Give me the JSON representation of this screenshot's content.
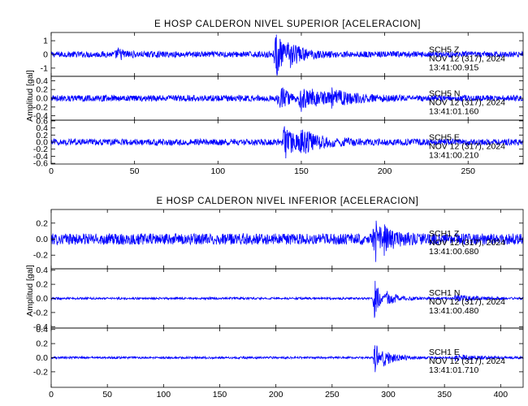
{
  "colors": {
    "trace": "#0000ff",
    "axis": "#000000",
    "background": "#ffffff"
  },
  "chart_data": [
    {
      "type": "line",
      "title": "E HOSP CALDERON NIVEL SUPERIOR [ACELERACION]",
      "ylabel": "Amplitud [gal]",
      "xlim": [
        0,
        283
      ],
      "x_ticks": [
        "0",
        "50",
        "100",
        "150",
        "200",
        "250"
      ],
      "x_tick_values": [
        0,
        50,
        100,
        150,
        200,
        250
      ],
      "grid": false,
      "panels": [
        {
          "name": "SCH5 Z",
          "info": [
            "SCH5 Z",
            "NOV 12 (317), 2024",
            "13:41:00.915"
          ],
          "ylim": [
            -1.6,
            1.6
          ],
          "y_ticks": [
            "1",
            "0",
            "-1"
          ],
          "y_tick_values": [
            1,
            0,
            -1
          ],
          "noise": 0.22,
          "events": [
            {
              "t": 40,
              "amp": 0.35,
              "width": 4
            },
            {
              "t": 135,
              "amp": 1.5,
              "width": 5
            },
            {
              "t": 143,
              "amp": 0.6,
              "width": 8
            }
          ]
        },
        {
          "name": "SCH5 N",
          "info": [
            "SCH5 N",
            "NOV 12 (317), 2024",
            "13:41:01.160"
          ],
          "ylim": [
            -0.5,
            0.5
          ],
          "y_ticks": [
            "0.4",
            "0.2",
            "0.0",
            "-0.2",
            "-0.4"
          ],
          "y_tick_values": [
            0.4,
            0.2,
            0.0,
            -0.2,
            -0.4
          ],
          "noise": 0.07,
          "events": [
            {
              "t": 137,
              "amp": 0.32,
              "width": 4
            },
            {
              "t": 150,
              "amp": 0.25,
              "width": 14
            },
            {
              "t": 168,
              "amp": 0.12,
              "width": 10
            }
          ]
        },
        {
          "name": "SCH5 E",
          "info": [
            "SCH5 E",
            "NOV 12 (317), 2024",
            "13:41:00.210"
          ],
          "ylim": [
            -0.62,
            0.62
          ],
          "y_ticks": [
            "0.6",
            "0.4",
            "0.2",
            "0.0",
            "-0.2",
            "-0.4",
            "-0.6"
          ],
          "y_tick_values": [
            0.6,
            0.4,
            0.2,
            0.0,
            -0.2,
            -0.4,
            -0.6
          ],
          "noise": 0.09,
          "events": [
            {
              "t": 140,
              "amp": 0.42,
              "width": 6
            },
            {
              "t": 150,
              "amp": 0.28,
              "width": 12
            }
          ]
        }
      ]
    },
    {
      "type": "line",
      "title": "E HOSP CALDERON NIVEL INFERIOR [ACELERACION]",
      "ylabel": "Amplitud [gal]",
      "xlim": [
        0,
        420
      ],
      "x_ticks": [
        "0",
        "50",
        "100",
        "150",
        "200",
        "250",
        "300",
        "350",
        "400"
      ],
      "x_tick_values": [
        0,
        50,
        100,
        150,
        200,
        250,
        300,
        350,
        400
      ],
      "grid": false,
      "panels": [
        {
          "name": "SCH1 Z",
          "info": [
            "SCH1 Z",
            "NOV 12 (317), 2024",
            "13:41:00.680"
          ],
          "ylim": [
            -0.37,
            0.37
          ],
          "y_ticks": [
            "0.2",
            "0.0",
            "-0.2"
          ],
          "y_tick_values": [
            0.2,
            0.0,
            -0.2
          ],
          "noise": 0.07,
          "events": [
            {
              "t": 288,
              "amp": 0.3,
              "width": 4
            },
            {
              "t": 296,
              "amp": 0.12,
              "width": 10
            }
          ]
        },
        {
          "name": "SCH1 N",
          "info": [
            "SCH1 N",
            "NOV 12 (317), 2024",
            "13:41:00.480"
          ],
          "ylim": [
            -0.42,
            0.42
          ],
          "y_ticks": [
            "0.4",
            "0.2",
            "0.0",
            "-0.2",
            "-0.4"
          ],
          "y_tick_values": [
            0.4,
            0.2,
            0.0,
            -0.2,
            -0.4
          ],
          "noise": 0.015,
          "events": [
            {
              "t": 288,
              "amp": 0.38,
              "width": 3
            },
            {
              "t": 298,
              "amp": 0.1,
              "width": 10
            },
            {
              "t": 360,
              "amp": 0.04,
              "width": 20
            }
          ]
        },
        {
          "name": "SCH1 E",
          "info": [
            "SCH1 E",
            "NOV 12 (317), 2024",
            "13:41:01.710"
          ],
          "ylim": [
            -0.42,
            0.42
          ],
          "y_ticks": [
            "0.4",
            "0.2",
            "0.0",
            "-0.2"
          ],
          "y_tick_values": [
            0.4,
            0.2,
            0.0,
            -0.2
          ],
          "noise": 0.015,
          "events": [
            {
              "t": 288,
              "amp": 0.32,
              "width": 3
            },
            {
              "t": 296,
              "amp": 0.1,
              "width": 12
            },
            {
              "t": 360,
              "amp": 0.04,
              "width": 20
            }
          ]
        }
      ]
    }
  ]
}
